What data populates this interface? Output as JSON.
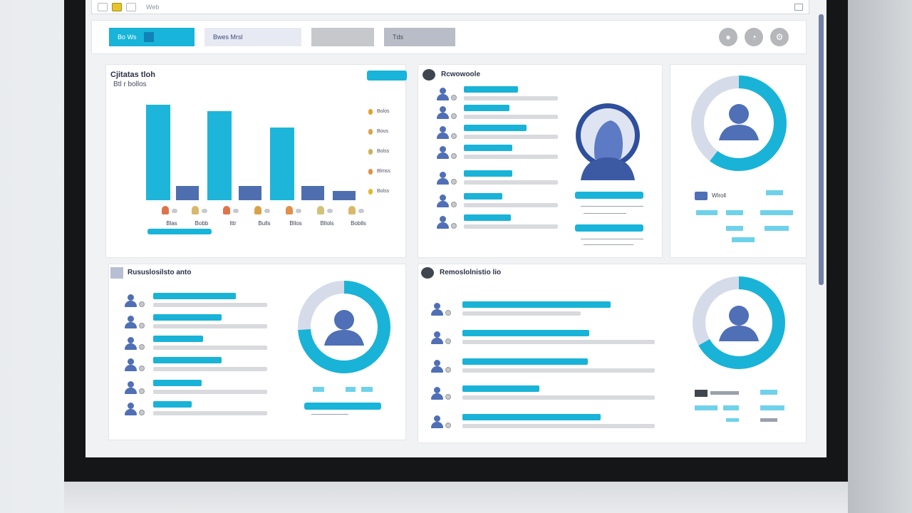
{
  "browser": {
    "url": "Web"
  },
  "toolbar": {
    "tabs": [
      {
        "label": "Bo Ws"
      },
      {
        "label": "Bwes Mrsl"
      },
      {
        "label": ""
      },
      {
        "label": "Tds"
      }
    ],
    "icons": [
      "user-icon",
      "chat-icon",
      "settings-icon"
    ]
  },
  "panel_chart": {
    "title": "Cjitatas tloh",
    "subtitle": "Btl r bollos",
    "button": "",
    "chart_data": {
      "type": "bar",
      "categories": [
        "Blas",
        "Bobb",
        "Ittr",
        "Bulls",
        "Bllos",
        "Bllols",
        "Boblls"
      ],
      "series": [
        {
          "values": [
            100,
            15,
            93,
            15,
            76,
            15,
            10
          ]
        }
      ],
      "ylim": [
        0,
        100
      ],
      "colors": [
        "#1db6da",
        "#4e6eaf"
      ]
    },
    "legend": [
      "Bolos",
      "Bous",
      "Bolss",
      "Blmss",
      "Bolss"
    ]
  },
  "panel_users": {
    "title": "Rcwowoole"
  },
  "panel_donut1": {
    "label": "Wlroll"
  },
  "panel_bottom_left": {
    "title": "Rususlosilsto anto"
  },
  "panel_bottom_right": {
    "title": "Remoslolnistio lio"
  },
  "panel_donut2": {},
  "colors": {
    "cyan": "#19b3d7",
    "navy": "#4f6fb6",
    "gray": "#d9dadd"
  }
}
